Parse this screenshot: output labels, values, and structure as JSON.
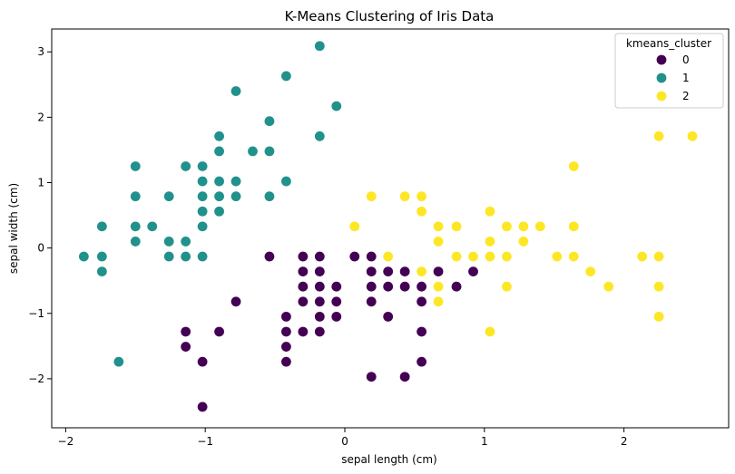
{
  "chart_data": {
    "type": "scatter",
    "title": "K-Means Clustering of Iris Data",
    "xlabel": "sepal length (cm)",
    "ylabel": "sepal width (cm)",
    "xlim": [
      -2.1,
      2.75
    ],
    "ylim": [
      -2.75,
      3.35
    ],
    "xticks": [
      -2,
      -1,
      0,
      1,
      2
    ],
    "yticks": [
      -2,
      -1,
      0,
      1,
      2,
      3
    ],
    "grid": false,
    "legend": {
      "title": "kmeans_cluster",
      "position": "top-right"
    },
    "series": [
      {
        "name": "0",
        "color": "#440154",
        "points": [
          [
            -1.02,
            -2.43
          ],
          [
            -1.02,
            -1.74
          ],
          [
            -1.14,
            -1.28
          ],
          [
            -1.14,
            -1.51
          ],
          [
            -0.9,
            -1.28
          ],
          [
            -0.78,
            -0.82
          ],
          [
            -0.54,
            -0.13
          ],
          [
            -0.42,
            -1.05
          ],
          [
            -0.42,
            -1.28
          ],
          [
            -0.42,
            -1.51
          ],
          [
            -0.42,
            -1.74
          ],
          [
            -0.3,
            -0.13
          ],
          [
            -0.3,
            -0.36
          ],
          [
            -0.3,
            -0.59
          ],
          [
            -0.3,
            -0.82
          ],
          [
            -0.3,
            -1.28
          ],
          [
            -0.18,
            -0.13
          ],
          [
            -0.18,
            -0.36
          ],
          [
            -0.18,
            -0.59
          ],
          [
            -0.18,
            -0.82
          ],
          [
            -0.18,
            -1.05
          ],
          [
            -0.18,
            -1.28
          ],
          [
            -0.06,
            -0.59
          ],
          [
            -0.06,
            -0.82
          ],
          [
            -0.06,
            -1.05
          ],
          [
            0.07,
            -0.13
          ],
          [
            0.19,
            -0.13
          ],
          [
            0.19,
            -0.36
          ],
          [
            0.19,
            -0.59
          ],
          [
            0.19,
            -0.82
          ],
          [
            0.19,
            -1.97
          ],
          [
            0.31,
            -0.36
          ],
          [
            0.31,
            -0.59
          ],
          [
            0.31,
            -1.05
          ],
          [
            0.43,
            -0.36
          ],
          [
            0.43,
            -0.59
          ],
          [
            0.43,
            -1.97
          ],
          [
            0.55,
            -0.59
          ],
          [
            0.55,
            -0.82
          ],
          [
            0.55,
            -1.28
          ],
          [
            0.55,
            -1.74
          ],
          [
            0.67,
            -0.36
          ],
          [
            0.67,
            -0.59
          ],
          [
            0.8,
            -0.59
          ],
          [
            0.92,
            -0.36
          ]
        ]
      },
      {
        "name": "1",
        "color": "#21918c",
        "points": [
          [
            -1.87,
            -0.13
          ],
          [
            -1.74,
            0.33
          ],
          [
            -1.74,
            -0.13
          ],
          [
            -1.74,
            -0.36
          ],
          [
            -1.62,
            -1.74
          ],
          [
            -1.5,
            1.25
          ],
          [
            -1.5,
            0.79
          ],
          [
            -1.5,
            0.33
          ],
          [
            -1.5,
            0.1
          ],
          [
            -1.38,
            0.33
          ],
          [
            -1.26,
            0.79
          ],
          [
            -1.26,
            0.1
          ],
          [
            -1.26,
            -0.13
          ],
          [
            -1.14,
            1.25
          ],
          [
            -1.14,
            0.1
          ],
          [
            -1.14,
            -0.13
          ],
          [
            -1.02,
            1.25
          ],
          [
            -1.02,
            1.02
          ],
          [
            -1.02,
            0.79
          ],
          [
            -1.02,
            0.56
          ],
          [
            -1.02,
            0.33
          ],
          [
            -1.02,
            -0.13
          ],
          [
            -0.9,
            1.71
          ],
          [
            -0.9,
            1.48
          ],
          [
            -0.9,
            1.02
          ],
          [
            -0.9,
            0.79
          ],
          [
            -0.9,
            0.56
          ],
          [
            -0.78,
            2.4
          ],
          [
            -0.78,
            1.02
          ],
          [
            -0.78,
            0.79
          ],
          [
            -0.66,
            1.48
          ],
          [
            -0.54,
            1.94
          ],
          [
            -0.54,
            1.48
          ],
          [
            -0.54,
            0.79
          ],
          [
            -0.42,
            2.63
          ],
          [
            -0.42,
            1.02
          ],
          [
            -0.18,
            3.09
          ],
          [
            -0.18,
            1.71
          ],
          [
            -0.06,
            2.17
          ]
        ]
      },
      {
        "name": "2",
        "color": "#fde725",
        "points": [
          [
            0.07,
            0.33
          ],
          [
            0.19,
            0.79
          ],
          [
            0.31,
            -0.13
          ],
          [
            0.43,
            0.79
          ],
          [
            0.55,
            0.79
          ],
          [
            0.55,
            0.56
          ],
          [
            0.55,
            -0.36
          ],
          [
            0.67,
            0.33
          ],
          [
            0.67,
            0.1
          ],
          [
            0.67,
            -0.59
          ],
          [
            0.67,
            -0.82
          ],
          [
            0.8,
            0.33
          ],
          [
            0.8,
            -0.13
          ],
          [
            0.92,
            -0.13
          ],
          [
            1.04,
            0.56
          ],
          [
            1.04,
            0.1
          ],
          [
            1.04,
            -0.13
          ],
          [
            1.04,
            -1.28
          ],
          [
            1.16,
            0.33
          ],
          [
            1.16,
            -0.13
          ],
          [
            1.16,
            -0.59
          ],
          [
            1.28,
            0.33
          ],
          [
            1.28,
            0.1
          ],
          [
            1.4,
            0.33
          ],
          [
            1.52,
            -0.13
          ],
          [
            1.64,
            1.25
          ],
          [
            1.64,
            0.33
          ],
          [
            1.64,
            -0.13
          ],
          [
            1.76,
            -0.36
          ],
          [
            1.89,
            -0.59
          ],
          [
            2.13,
            -0.13
          ],
          [
            2.25,
            1.71
          ],
          [
            2.25,
            -0.13
          ],
          [
            2.25,
            -0.59
          ],
          [
            2.25,
            -1.05
          ],
          [
            2.49,
            1.71
          ]
        ]
      }
    ]
  }
}
